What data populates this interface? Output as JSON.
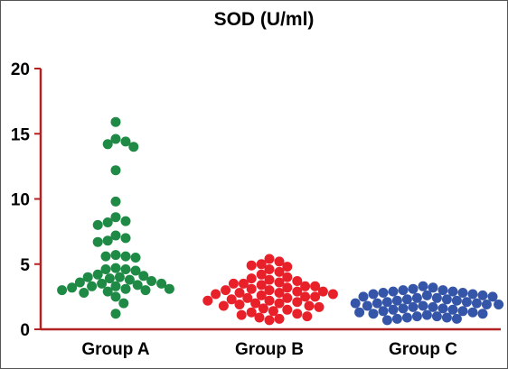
{
  "chart_data": {
    "type": "scatter",
    "title": "SOD (U/ml)",
    "xlabel": "",
    "ylabel": "",
    "ylim": [
      0,
      20
    ],
    "yticks": [
      "0",
      "5",
      "10",
      "15",
      "20"
    ],
    "categories": [
      "Group A",
      "Group B",
      "Group C"
    ],
    "axis_color": "#b22222",
    "grid": false,
    "series": [
      {
        "color": "#1f8a45",
        "values": [
          15.9,
          14.4,
          14.2,
          14.6,
          14.0,
          12.2,
          9.8,
          8.6,
          8.3,
          8.2,
          8.0,
          7.2,
          7.0,
          6.8,
          6.7,
          5.7,
          5.6,
          5.6,
          5.5,
          4.7,
          4.6,
          4.6,
          4.5,
          4.2,
          4.1,
          4.0,
          4.0,
          3.9,
          3.8,
          3.7,
          3.6,
          3.5,
          3.5,
          3.4,
          3.3,
          3.3,
          3.2,
          3.1,
          3.1,
          3.0,
          3.0,
          2.9,
          2.8,
          2.5,
          2.0,
          1.2
        ]
      },
      {
        "color": "#e8202a",
        "values": [
          5.4,
          5.2,
          5.0,
          4.9,
          4.8,
          4.6,
          4.4,
          4.2,
          4.0,
          3.9,
          3.8,
          3.7,
          3.6,
          3.5,
          3.5,
          3.4,
          3.3,
          3.3,
          3.2,
          3.1,
          3.0,
          3.0,
          2.9,
          2.9,
          2.8,
          2.8,
          2.7,
          2.7,
          2.6,
          2.5,
          2.5,
          2.4,
          2.4,
          2.3,
          2.2,
          2.2,
          2.1,
          2.0,
          2.0,
          1.9,
          1.8,
          1.8,
          1.7,
          1.6,
          1.5,
          1.4,
          1.3,
          1.2,
          1.1,
          1.0,
          0.9,
          0.8,
          0.7
        ]
      },
      {
        "color": "#3556a8",
        "values": [
          3.3,
          3.2,
          3.1,
          3.0,
          3.0,
          2.9,
          2.9,
          2.8,
          2.8,
          2.7,
          2.7,
          2.6,
          2.6,
          2.5,
          2.5,
          2.4,
          2.4,
          2.3,
          2.3,
          2.2,
          2.2,
          2.1,
          2.1,
          2.0,
          2.0,
          2.0,
          1.9,
          1.9,
          1.8,
          1.8,
          1.7,
          1.7,
          1.6,
          1.6,
          1.5,
          1.5,
          1.4,
          1.4,
          1.3,
          1.3,
          1.2,
          1.2,
          1.1,
          1.0,
          1.0,
          0.9,
          0.9,
          0.8,
          0.8,
          0.7
        ]
      }
    ]
  }
}
